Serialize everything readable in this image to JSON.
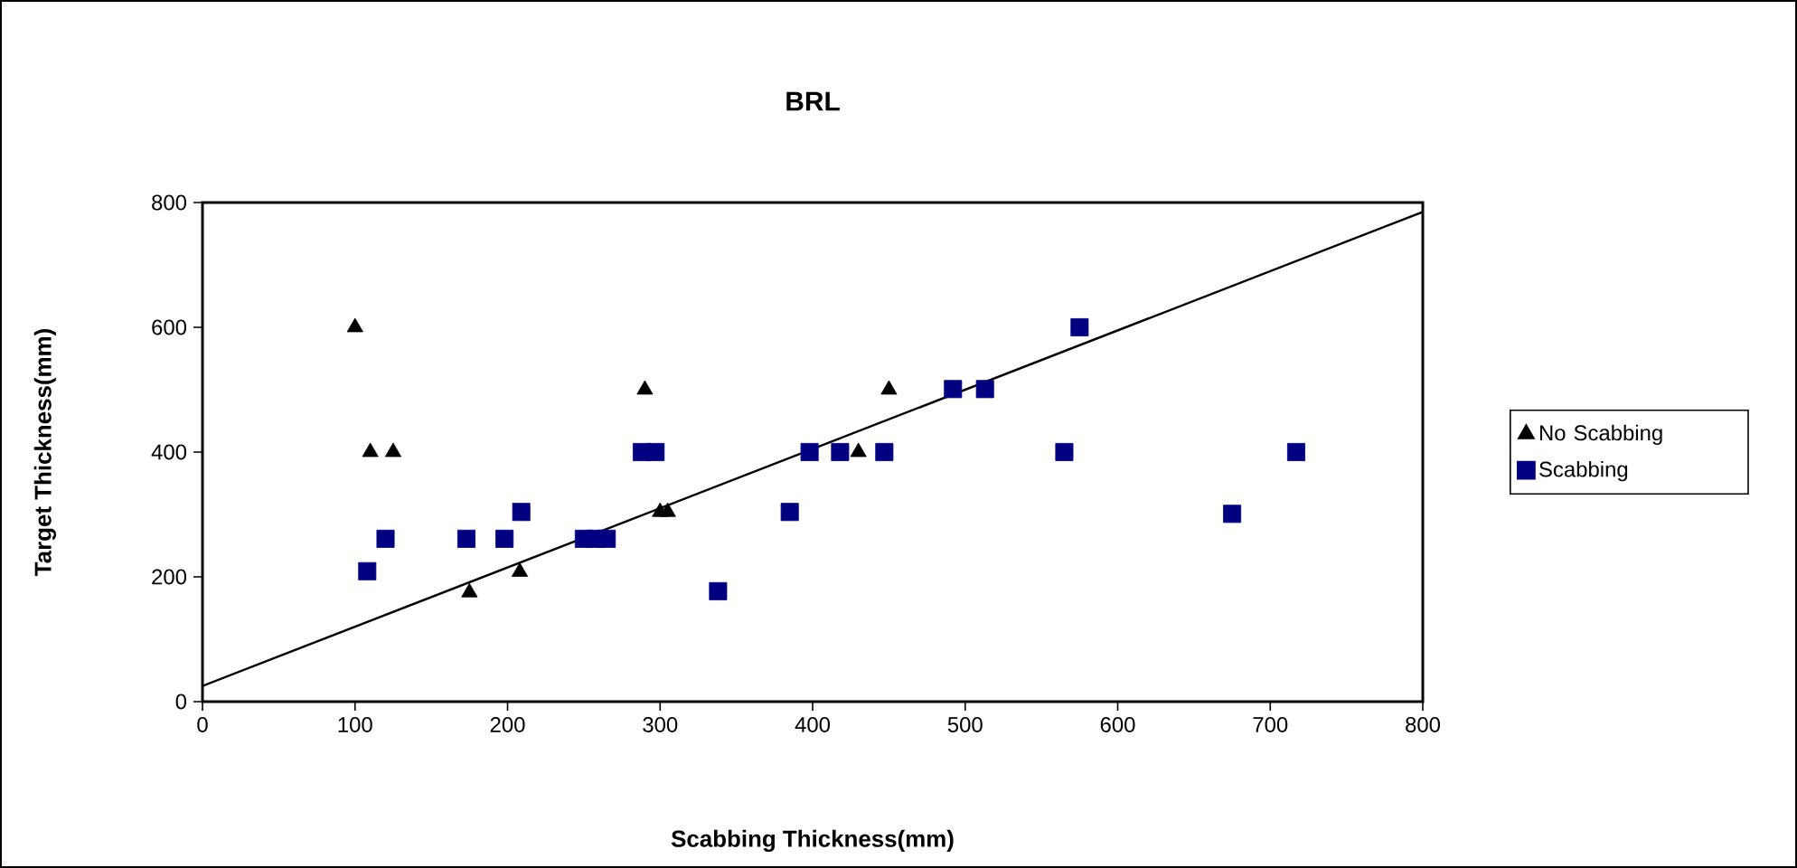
{
  "chart_data": {
    "type": "scatter",
    "title": "BRL",
    "xlabel": "Scabbing Thickness(mm)",
    "ylabel": "Target Thickness(mm)",
    "xlim": [
      0,
      800
    ],
    "xticks": [
      0,
      100,
      200,
      300,
      400,
      500,
      600,
      700,
      800
    ],
    "ylim": [
      0,
      800
    ],
    "yticks": [
      0,
      200,
      400,
      600,
      800
    ],
    "grid": false,
    "legend": "right",
    "series": [
      {
        "name": "No Scabbing",
        "color": "#000000",
        "marker": "triangle",
        "x": [
          100,
          110,
          125,
          175,
          208,
          290,
          300,
          305,
          430,
          450
        ],
        "values": [
          600,
          400,
          400,
          175,
          208,
          500,
          304,
          304,
          400,
          500
        ]
      },
      {
        "name": "Scabbing",
        "color": "#000080",
        "marker": "square",
        "x": [
          108,
          120,
          173,
          198,
          209,
          250,
          258,
          265,
          288,
          297,
          338,
          385,
          398,
          418,
          447,
          492,
          513,
          575,
          565,
          675,
          717
        ],
        "values": [
          209,
          261,
          261,
          261,
          304,
          261,
          261,
          261,
          400,
          400,
          177,
          304,
          400,
          400,
          400,
          501,
          501,
          600,
          400,
          301,
          400
        ]
      },
      {
        "type": "line",
        "color": "#000000",
        "marker": "none",
        "x": [
          0,
          800
        ],
        "values": [
          25,
          785
        ]
      }
    ]
  }
}
